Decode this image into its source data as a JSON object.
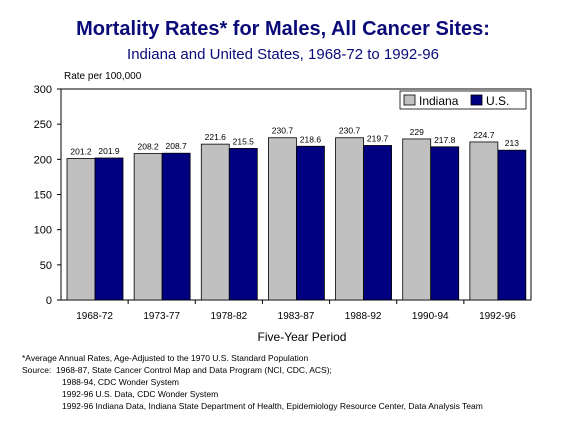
{
  "chart_data": {
    "type": "bar",
    "title": "Mortality Rates* for Males, All Cancer Sites:",
    "subtitle": "Indiana and United States, 1968-72 to 1992-96",
    "ylabel": "Rate per 100,000",
    "xlabel": "Five-Year Period",
    "categories": [
      "1968-72",
      "1973-77",
      "1978-82",
      "1983-87",
      "1988-92",
      "1990-94",
      "1992-96"
    ],
    "series": [
      {
        "name": "Indiana",
        "values": [
          201.2,
          208.2,
          221.6,
          230.7,
          230.7,
          229,
          224.7
        ],
        "labels": [
          "201.2",
          "208.2",
          "221.6",
          "230.7",
          "230.7",
          "229",
          "224.7"
        ],
        "color": "#c0c0c0"
      },
      {
        "name": "U.S.",
        "values": [
          201.9,
          208.7,
          215.5,
          218.6,
          219.7,
          217.8,
          213
        ],
        "labels": [
          "201.9",
          "208.7",
          "215.5",
          "218.6",
          "219.7",
          "217.8",
          "213"
        ],
        "color": "#000080"
      }
    ],
    "ylim": [
      0,
      300
    ],
    "yticks": [
      "0",
      "50",
      "100",
      "150",
      "200",
      "250",
      "300"
    ],
    "grid": false,
    "legend_position": "top-right"
  },
  "footnotes": [
    "*Average Annual Rates, Age-Adjusted to the 1970 U.S. Standard Population",
    "Source:  1968-87, State Cancer Control Map and Data Program (NCI, CDC, ACS);",
    "1988-94, CDC Wonder System",
    "1992-96 U.S. Data, CDC Wonder System",
    "1992-96 Indiana Data, Indiana State Department of Health, Epidemiology Resource Center, Data Analysis Team"
  ]
}
